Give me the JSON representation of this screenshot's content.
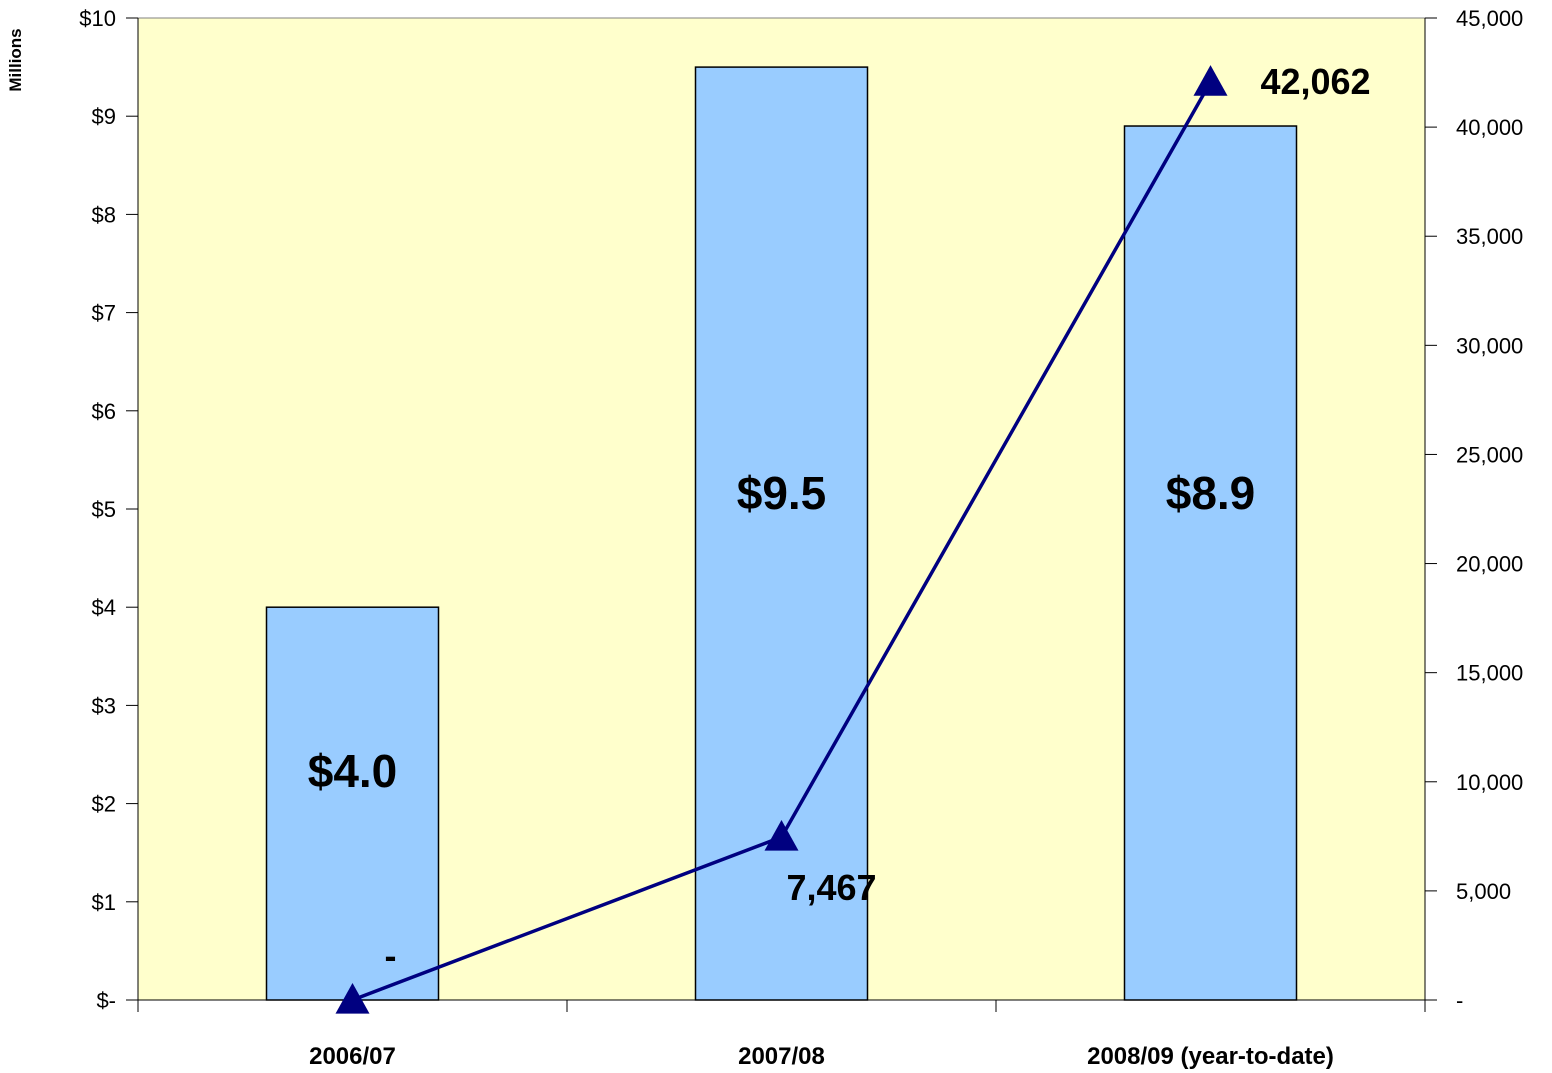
{
  "chart_data": {
    "type": "bar",
    "categories": [
      "2006/07",
      "2007/08",
      "2008/09 (year-to-date)"
    ],
    "series": [
      {
        "type": "bar",
        "axis": "left",
        "values": [
          4.0,
          9.5,
          8.9
        ],
        "data_labels": [
          "$4.0",
          "$9.5",
          "$8.9"
        ],
        "color": "#99CCFF"
      },
      {
        "type": "line",
        "axis": "right",
        "values": [
          0,
          7467,
          42062
        ],
        "data_labels": [
          "-",
          "7,467",
          "42,062"
        ],
        "color": "#000080",
        "marker": "triangle"
      }
    ],
    "left_axis": {
      "title": "Millions",
      "range": [
        0,
        10
      ],
      "ticks": [
        0,
        1,
        2,
        3,
        4,
        5,
        6,
        7,
        8,
        9,
        10
      ],
      "tick_labels": [
        "$-",
        "$1",
        "$2",
        "$3",
        "$4",
        "$5",
        "$6",
        "$7",
        "$8",
        "$9",
        "$10"
      ]
    },
    "right_axis": {
      "title": "",
      "range": [
        0,
        45000
      ],
      "ticks": [
        0,
        5000,
        10000,
        15000,
        20000,
        25000,
        30000,
        35000,
        40000,
        45000
      ],
      "tick_labels": [
        "-",
        "5,000",
        "10,000",
        "15,000",
        "20,000",
        "25,000",
        "30,000",
        "35,000",
        "40,000",
        "45,000"
      ]
    },
    "plot_background": "#FFFFCC",
    "grid": false,
    "legend": "none"
  }
}
